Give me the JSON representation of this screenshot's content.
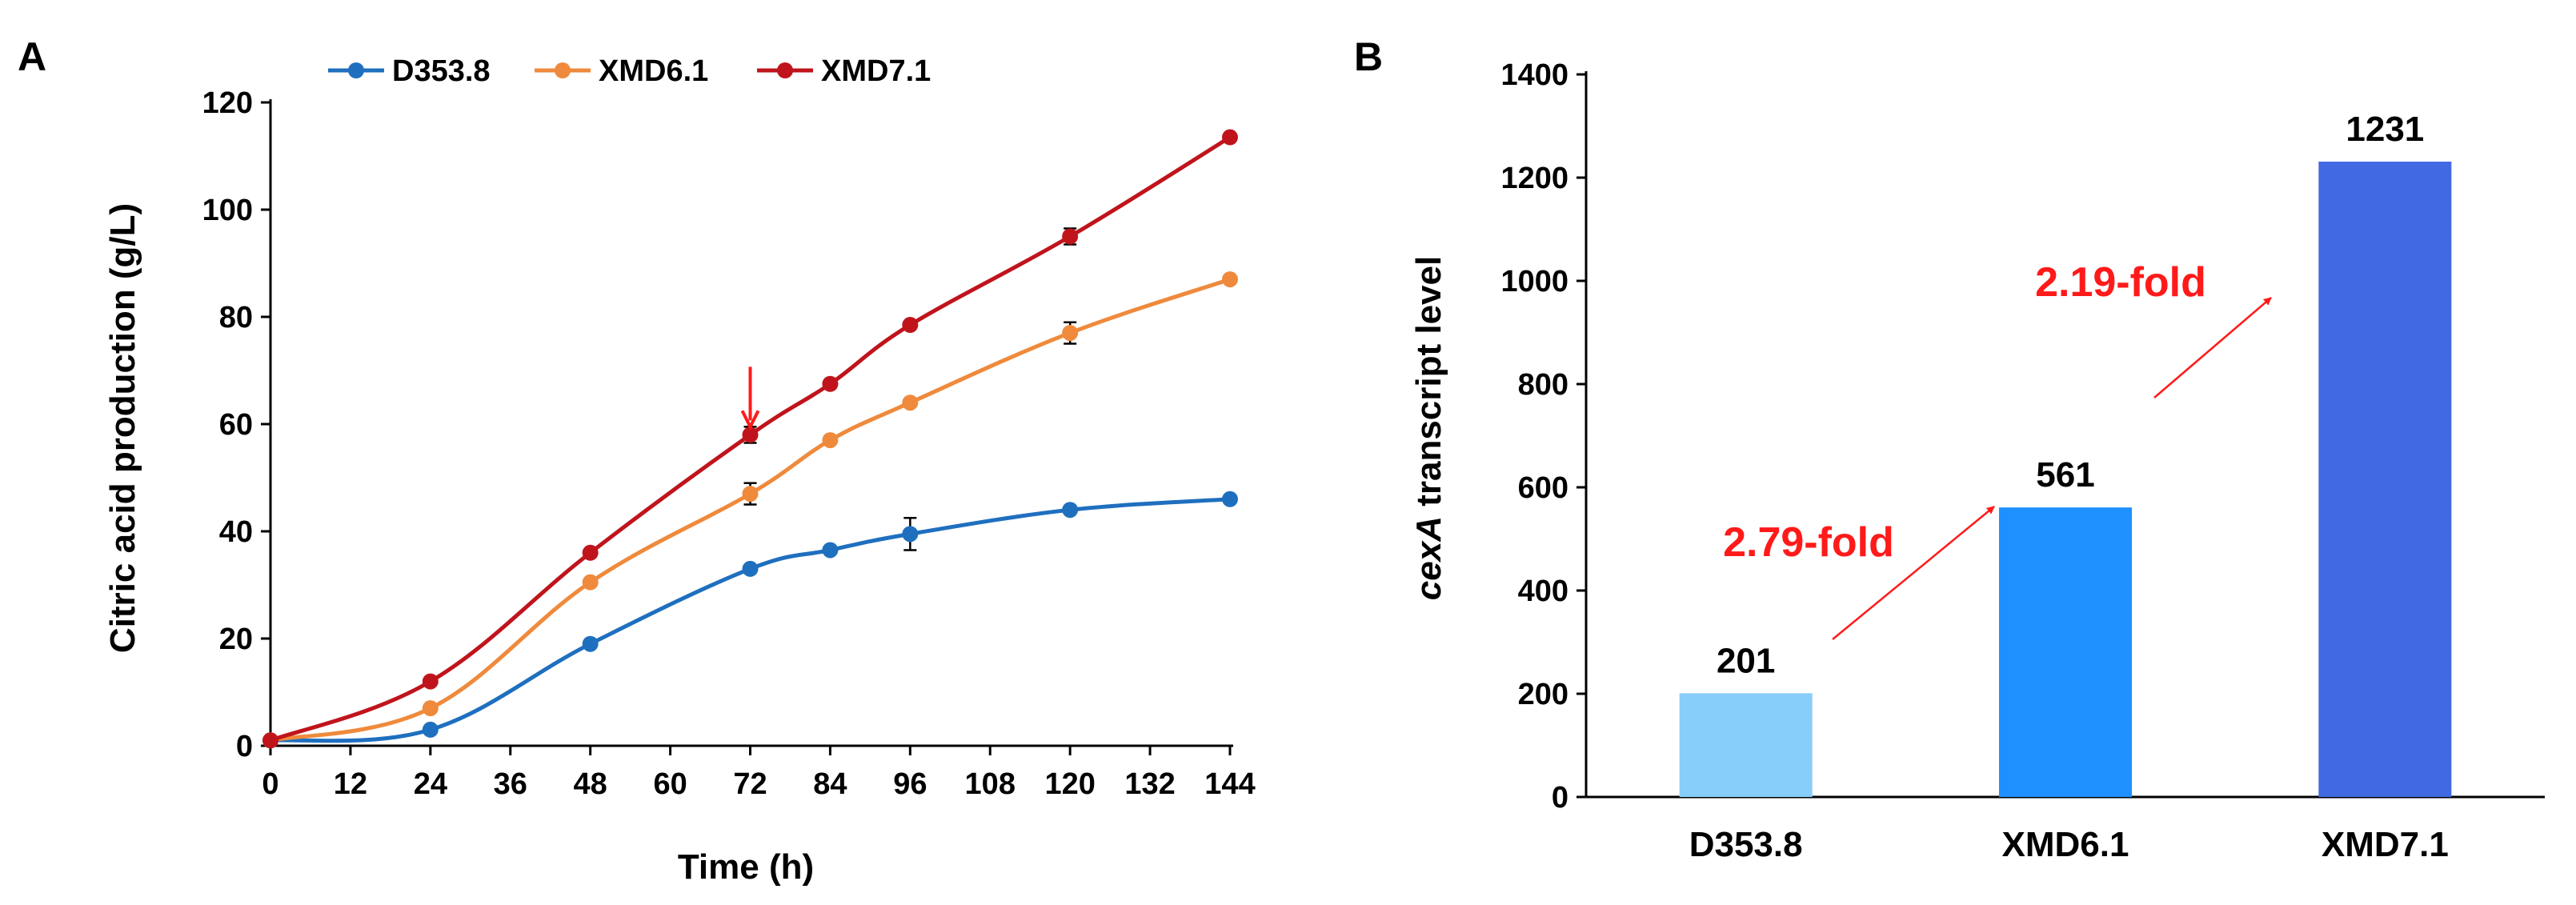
{
  "chart_data": [
    {
      "panel": "A",
      "type": "line",
      "xlabel": "Time (h)",
      "ylabel": "Citric acid production (g/L)",
      "xlim": [
        0,
        144
      ],
      "ylim": [
        0,
        120
      ],
      "xticks": [
        0,
        12,
        24,
        36,
        48,
        60,
        72,
        84,
        96,
        108,
        120,
        132,
        144
      ],
      "yticks": [
        0,
        20,
        40,
        60,
        80,
        100,
        120
      ],
      "legend": "top",
      "x": [
        0,
        24,
        48,
        72,
        84,
        96,
        120,
        144
      ],
      "series": [
        {
          "name": "D353.8",
          "color": "#1f6fbf",
          "values": [
            1,
            3,
            19,
            33,
            36.5,
            39.5,
            44,
            46
          ],
          "errors": [
            0,
            0,
            0,
            0,
            0,
            3,
            0,
            0
          ]
        },
        {
          "name": "XMD6.1",
          "color": "#ef8a3c",
          "values": [
            1,
            7,
            30.5,
            47,
            57,
            64,
            77,
            87
          ],
          "errors": [
            0,
            0,
            0,
            2,
            0,
            0,
            2,
            0
          ]
        },
        {
          "name": "XMD7.1",
          "color": "#c0141c",
          "values": [
            1,
            12,
            36,
            58,
            67.5,
            78.5,
            95,
            113.5
          ],
          "errors": [
            0,
            0,
            0,
            1.5,
            0,
            0,
            1.5,
            0
          ]
        }
      ],
      "annotation": {
        "type": "arrow",
        "x": 72,
        "y": 58,
        "color": "#ff1a1a"
      }
    },
    {
      "panel": "B",
      "type": "bar",
      "categories": [
        "D353.8",
        "XMD6.1",
        "XMD7.1"
      ],
      "values": [
        201,
        561,
        1231
      ],
      "value_labels": [
        "201",
        "561",
        "1231"
      ],
      "colors": [
        "#87cefa",
        "#1e90ff",
        "#4169e1"
      ],
      "ylabel_italic": "cexA",
      "ylabel_rest": " transcript level",
      "ylim": [
        0,
        1400
      ],
      "yticks": [
        0,
        200,
        400,
        600,
        800,
        1000,
        1200,
        1400
      ],
      "fold_changes": [
        {
          "label": "2.79-fold",
          "from": 0,
          "to": 1
        },
        {
          "label": "2.19-fold",
          "from": 1,
          "to": 2
        }
      ]
    }
  ]
}
